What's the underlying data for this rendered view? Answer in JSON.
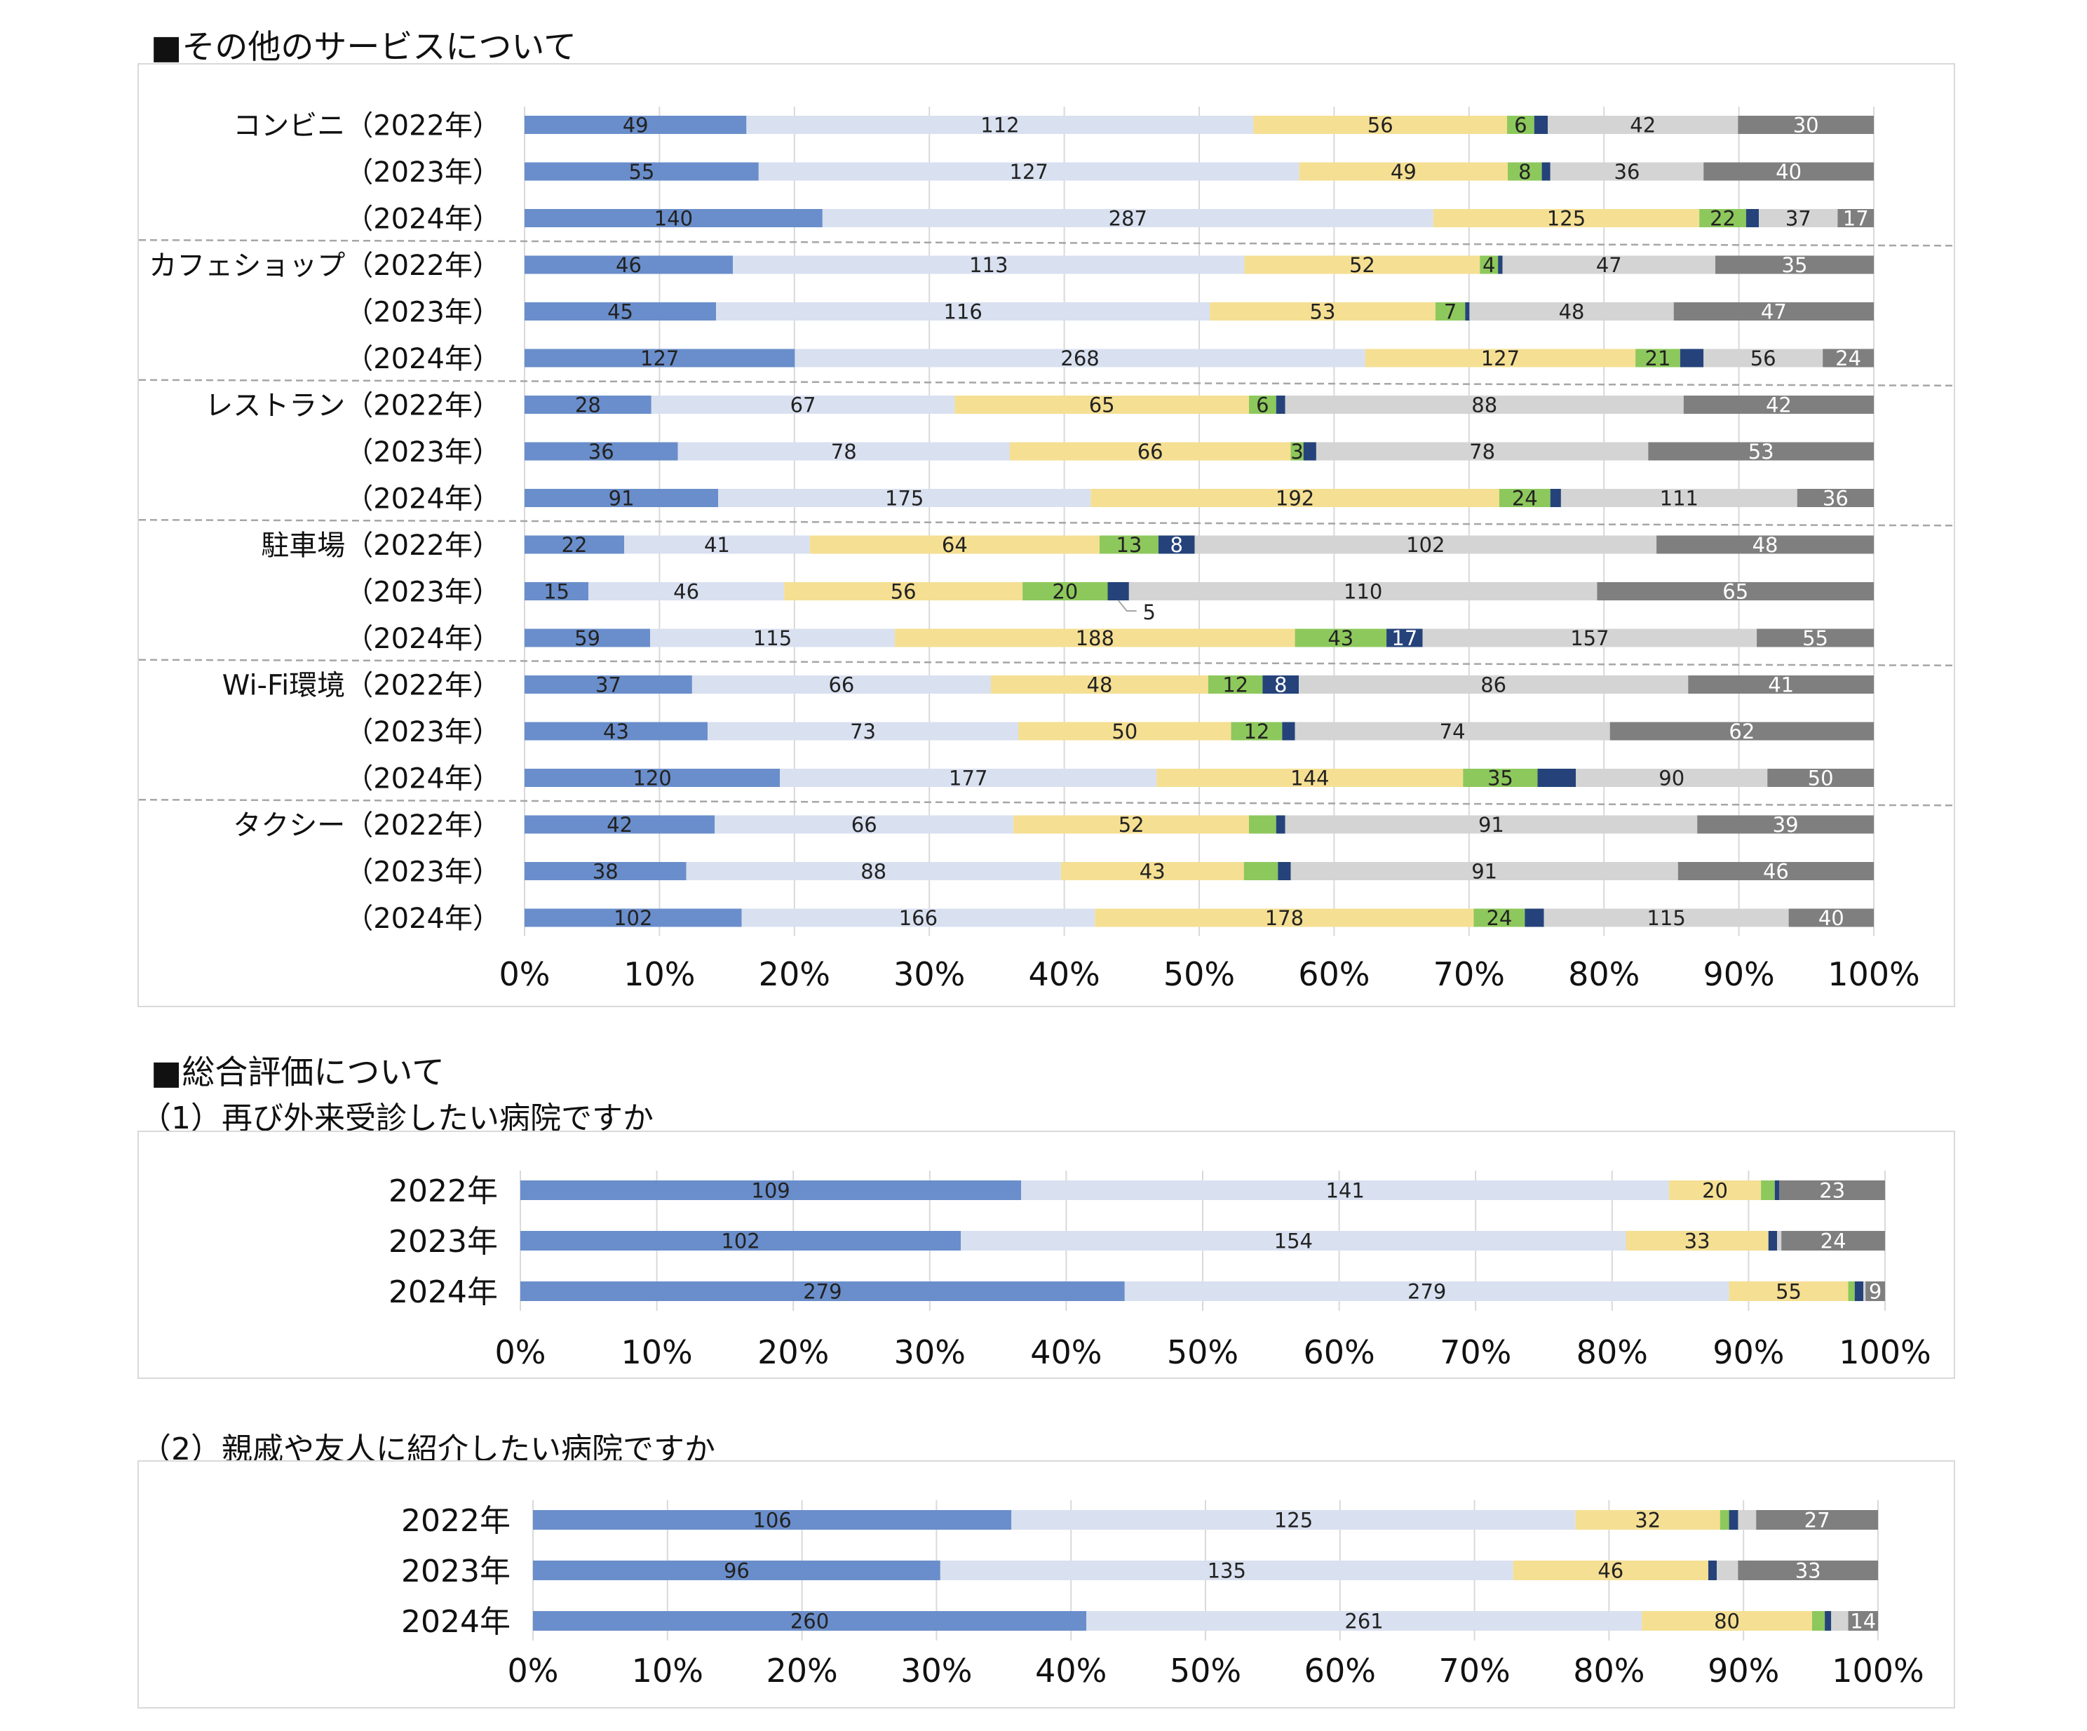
{
  "section1": {
    "heading": "■その他のサービスについて"
  },
  "section2": {
    "heading": "■総合評価について",
    "q1": "（1）再び外来受診したい病院ですか",
    "q2": "（2）親戚や友人に紹介したい病院ですか"
  },
  "colors": [
    "#6a8ecb",
    "#d9e0f0",
    "#f5df93",
    "#8dc85c",
    "#25437a",
    "#d4d4d4",
    "#7f7f7f"
  ],
  "chart_data": [
    {
      "type": "bar",
      "orientation": "horizontal",
      "stacking": "percent",
      "xlim": [
        0,
        100
      ],
      "xticks": [
        "0%",
        "10%",
        "20%",
        "30%",
        "40%",
        "50%",
        "60%",
        "70%",
        "80%",
        "90%",
        "100%"
      ],
      "grid": true,
      "legend": "none",
      "categories": [
        "コンビニ（2022年）",
        "（2023年）",
        "（2024年）",
        "カフェショップ（2022年）",
        "（2023年）",
        "（2024年）",
        "レストラン（2022年）",
        "（2023年）",
        "（2024年）",
        "駐車場（2022年）",
        "（2023年）",
        "（2024年）",
        "Wi-Fi環境（2022年）",
        "（2023年）",
        "（2024年）",
        "タクシー（2022年）",
        "（2023年）",
        "（2024年）"
      ],
      "rows": [
        [
          49,
          112,
          56,
          6,
          3,
          42,
          30
        ],
        [
          55,
          127,
          49,
          8,
          2,
          36,
          40
        ],
        [
          140,
          287,
          125,
          22,
          6,
          37,
          17
        ],
        [
          46,
          113,
          52,
          4,
          1,
          47,
          35
        ],
        [
          45,
          116,
          53,
          7,
          1,
          48,
          47
        ],
        [
          127,
          268,
          127,
          21,
          11,
          56,
          24
        ],
        [
          28,
          67,
          65,
          6,
          2,
          88,
          42
        ],
        [
          36,
          78,
          66,
          3,
          3,
          78,
          53
        ],
        [
          91,
          175,
          192,
          24,
          5,
          111,
          36
        ],
        [
          22,
          41,
          64,
          13,
          8,
          102,
          48
        ],
        [
          15,
          46,
          56,
          20,
          5,
          110,
          65
        ],
        [
          59,
          115,
          188,
          43,
          17,
          157,
          55
        ],
        [
          37,
          66,
          48,
          12,
          8,
          86,
          41
        ],
        [
          43,
          73,
          50,
          12,
          3,
          74,
          62
        ],
        [
          120,
          177,
          144,
          35,
          18,
          90,
          50
        ],
        [
          42,
          66,
          52,
          6,
          2,
          91,
          39
        ],
        [
          38,
          88,
          43,
          8,
          3,
          91,
          46
        ],
        [
          102,
          166,
          178,
          24,
          9,
          115,
          40
        ]
      ],
      "labels": [
        [
          "49",
          "112",
          "56",
          "6",
          "",
          "42",
          "30"
        ],
        [
          "55",
          "127",
          "49",
          "8",
          "",
          "36",
          "40"
        ],
        [
          "140",
          "287",
          "125",
          "22",
          "",
          "37",
          "17"
        ],
        [
          "46",
          "113",
          "52",
          "4",
          "",
          "47",
          "35"
        ],
        [
          "45",
          "116",
          "53",
          "7",
          "",
          "48",
          "47"
        ],
        [
          "127",
          "268",
          "127",
          "21",
          "",
          "56",
          "24"
        ],
        [
          "28",
          "67",
          "65",
          "6",
          "",
          "88",
          "42"
        ],
        [
          "36",
          "78",
          "66",
          "3",
          "",
          "78",
          "53"
        ],
        [
          "91",
          "175",
          "192",
          "24",
          "",
          "111",
          "36"
        ],
        [
          "22",
          "41",
          "64",
          "13",
          "8",
          "102",
          "48"
        ],
        [
          "15",
          "46",
          "56",
          "20",
          "",
          "110",
          "65"
        ],
        [
          "59",
          "115",
          "188",
          "43",
          "17",
          "157",
          "55"
        ],
        [
          "37",
          "66",
          "48",
          "12",
          "8",
          "86",
          "41"
        ],
        [
          "43",
          "73",
          "50",
          "12",
          "",
          "74",
          "62"
        ],
        [
          "120",
          "177",
          "144",
          "35",
          "",
          "90",
          "50"
        ],
        [
          "42",
          "66",
          "52",
          "",
          "",
          "91",
          "39"
        ],
        [
          "38",
          "88",
          "43",
          "",
          "",
          "91",
          "46"
        ],
        [
          "102",
          "166",
          "178",
          "24",
          "",
          "115",
          "40"
        ]
      ],
      "callout": {
        "row": 10,
        "series": 4,
        "text": "5"
      }
    },
    {
      "type": "bar",
      "orientation": "horizontal",
      "stacking": "percent",
      "xlim": [
        0,
        100
      ],
      "xticks": [
        "0%",
        "10%",
        "20%",
        "30%",
        "40%",
        "50%",
        "60%",
        "70%",
        "80%",
        "90%",
        "100%"
      ],
      "grid": true,
      "legend": "none",
      "categories": [
        "2022年",
        "2023年",
        "2024年"
      ],
      "rows": [
        [
          109,
          141,
          20,
          3,
          1,
          0,
          23
        ],
        [
          102,
          154,
          33,
          0,
          2,
          1,
          24
        ],
        [
          279,
          279,
          55,
          3,
          4,
          1,
          9
        ]
      ],
      "labels": [
        [
          "109",
          "141",
          "20",
          "",
          "",
          "",
          "23"
        ],
        [
          "102",
          "154",
          "33",
          "",
          "",
          "",
          "24"
        ],
        [
          "279",
          "279",
          "55",
          "",
          "",
          "",
          "9"
        ]
      ]
    },
    {
      "type": "bar",
      "orientation": "horizontal",
      "stacking": "percent",
      "xlim": [
        0,
        100
      ],
      "xticks": [
        "0%",
        "10%",
        "20%",
        "30%",
        "40%",
        "50%",
        "60%",
        "70%",
        "80%",
        "90%",
        "100%"
      ],
      "grid": true,
      "legend": "none",
      "categories": [
        "2022年",
        "2023年",
        "2024年"
      ],
      "rows": [
        [
          106,
          125,
          32,
          2,
          2,
          4,
          27
        ],
        [
          96,
          135,
          46,
          0,
          2,
          5,
          33
        ],
        [
          260,
          261,
          80,
          6,
          3,
          8,
          14
        ]
      ],
      "labels": [
        [
          "106",
          "125",
          "32",
          "",
          "",
          "",
          "27"
        ],
        [
          "96",
          "135",
          "46",
          "",
          "",
          "",
          "33"
        ],
        [
          "260",
          "261",
          "80",
          "",
          "",
          "",
          "14"
        ]
      ]
    }
  ]
}
